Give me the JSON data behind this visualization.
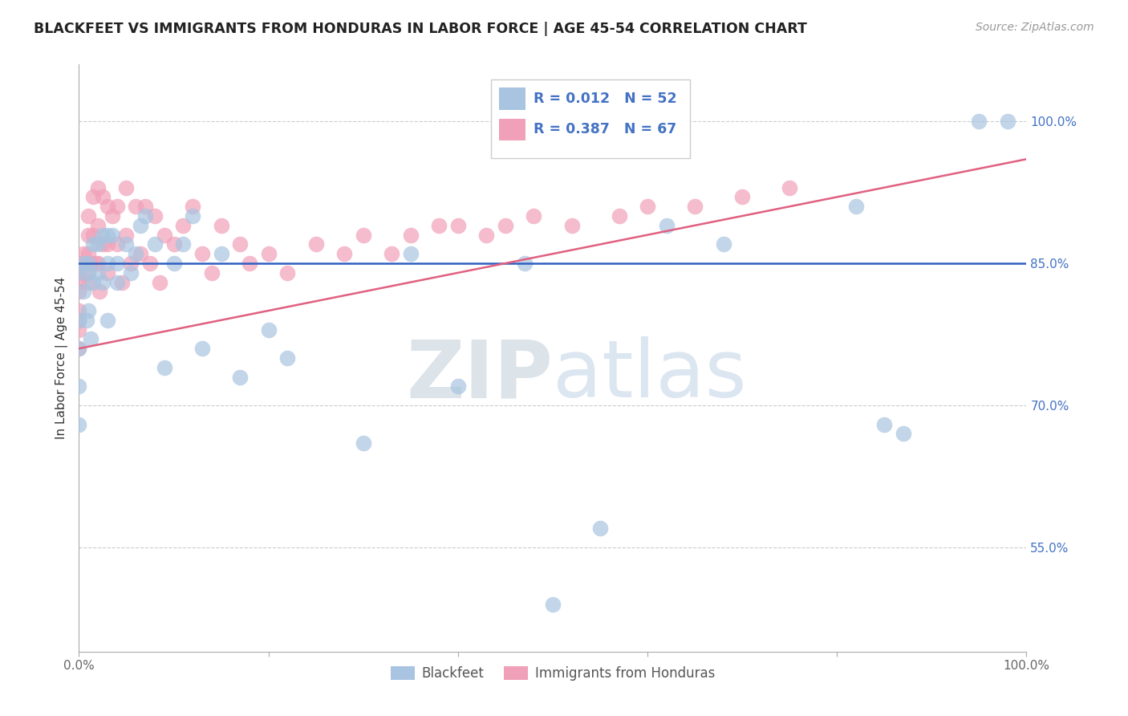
{
  "title": "BLACKFEET VS IMMIGRANTS FROM HONDURAS IN LABOR FORCE | AGE 45-54 CORRELATION CHART",
  "source": "Source: ZipAtlas.com",
  "ylabel": "In Labor Force | Age 45-54",
  "xlim": [
    0,
    1.0
  ],
  "ylim": [
    0.44,
    1.06
  ],
  "y_ticks": [
    0.55,
    0.7,
    0.85,
    1.0
  ],
  "y_tick_labels": [
    "55.0%",
    "70.0%",
    "85.0%",
    "100.0%"
  ],
  "blue_R": 0.012,
  "blue_N": 52,
  "pink_R": 0.387,
  "pink_N": 67,
  "blue_color": "#a8c4e0",
  "pink_color": "#f0a0b8",
  "blue_line_color": "#3060c0",
  "pink_line_color": "#e06080",
  "tick_label_color": "#4472c4",
  "watermark_color": "#c8d8e8",
  "blue_line_y": 0.85,
  "pink_line_x0": 0.0,
  "pink_line_y0": 0.76,
  "pink_line_x1": 1.0,
  "pink_line_y1": 0.96,
  "blue_scatter_x": [
    0.0,
    0.0,
    0.0,
    0.0,
    0.0,
    0.005,
    0.005,
    0.008,
    0.01,
    0.01,
    0.01,
    0.012,
    0.015,
    0.015,
    0.02,
    0.02,
    0.025,
    0.025,
    0.03,
    0.03,
    0.03,
    0.035,
    0.04,
    0.04,
    0.05,
    0.055,
    0.06,
    0.065,
    0.07,
    0.08,
    0.09,
    0.1,
    0.11,
    0.12,
    0.13,
    0.15,
    0.17,
    0.2,
    0.22,
    0.3,
    0.35,
    0.4,
    0.47,
    0.5,
    0.55,
    0.62,
    0.68,
    0.82,
    0.85,
    0.87,
    0.95,
    0.98
  ],
  "blue_scatter_y": [
    0.84,
    0.79,
    0.76,
    0.72,
    0.68,
    0.85,
    0.82,
    0.79,
    0.85,
    0.84,
    0.8,
    0.77,
    0.87,
    0.83,
    0.87,
    0.84,
    0.88,
    0.83,
    0.88,
    0.85,
    0.79,
    0.88,
    0.85,
    0.83,
    0.87,
    0.84,
    0.86,
    0.89,
    0.9,
    0.87,
    0.74,
    0.85,
    0.87,
    0.9,
    0.76,
    0.86,
    0.73,
    0.78,
    0.75,
    0.66,
    0.86,
    0.72,
    0.85,
    0.49,
    0.57,
    0.89,
    0.87,
    0.91,
    0.68,
    0.67,
    1.0,
    1.0
  ],
  "pink_scatter_x": [
    0.0,
    0.0,
    0.0,
    0.0,
    0.0,
    0.0,
    0.0,
    0.0,
    0.005,
    0.008,
    0.01,
    0.01,
    0.01,
    0.01,
    0.012,
    0.015,
    0.015,
    0.018,
    0.02,
    0.02,
    0.02,
    0.022,
    0.025,
    0.025,
    0.03,
    0.03,
    0.03,
    0.035,
    0.04,
    0.04,
    0.045,
    0.05,
    0.05,
    0.055,
    0.06,
    0.065,
    0.07,
    0.075,
    0.08,
    0.085,
    0.09,
    0.1,
    0.11,
    0.12,
    0.13,
    0.14,
    0.15,
    0.17,
    0.18,
    0.2,
    0.22,
    0.25,
    0.28,
    0.3,
    0.33,
    0.35,
    0.38,
    0.4,
    0.43,
    0.45,
    0.48,
    0.52,
    0.57,
    0.6,
    0.65,
    0.7,
    0.75
  ],
  "pink_scatter_y": [
    0.85,
    0.84,
    0.83,
    0.82,
    0.8,
    0.79,
    0.78,
    0.76,
    0.86,
    0.84,
    0.9,
    0.88,
    0.86,
    0.83,
    0.85,
    0.92,
    0.88,
    0.85,
    0.93,
    0.89,
    0.85,
    0.82,
    0.92,
    0.87,
    0.91,
    0.87,
    0.84,
    0.9,
    0.91,
    0.87,
    0.83,
    0.93,
    0.88,
    0.85,
    0.91,
    0.86,
    0.91,
    0.85,
    0.9,
    0.83,
    0.88,
    0.87,
    0.89,
    0.91,
    0.86,
    0.84,
    0.89,
    0.87,
    0.85,
    0.86,
    0.84,
    0.87,
    0.86,
    0.88,
    0.86,
    0.88,
    0.89,
    0.89,
    0.88,
    0.89,
    0.9,
    0.89,
    0.9,
    0.91,
    0.91,
    0.92,
    0.93
  ]
}
